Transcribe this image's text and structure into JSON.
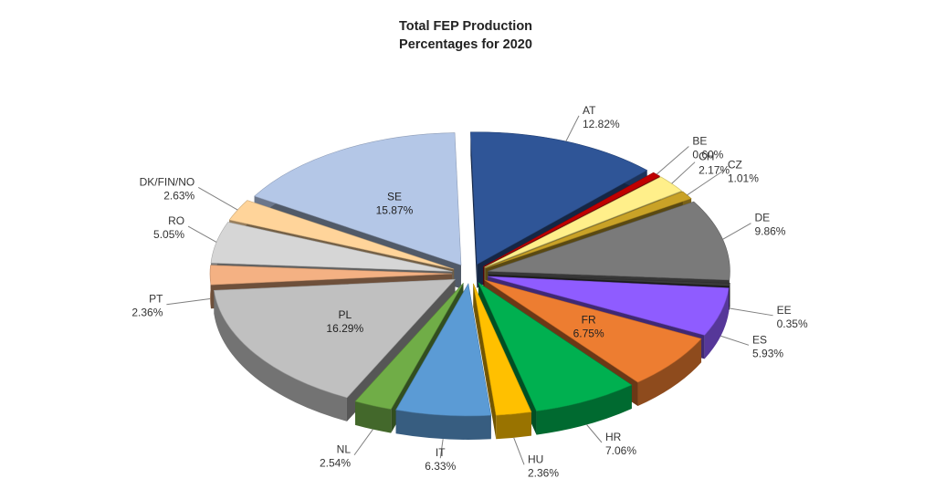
{
  "chart_data": {
    "type": "pie",
    "style": "3d-exploded",
    "title": "Total FEP Production",
    "subtitle": "Percentages for 2020",
    "slices": [
      {
        "label": "AT",
        "value": 12.82,
        "value_label": "12.82%",
        "color": "#2f5597"
      },
      {
        "label": "BE",
        "value": 0.6,
        "value_label": "0.60%",
        "color": "#c00000"
      },
      {
        "label": "CH",
        "value": 2.17,
        "value_label": "2.17%",
        "color": "#ffef8a"
      },
      {
        "label": "CZ",
        "value": 1.01,
        "value_label": "1.01%",
        "color": "#c9a227"
      },
      {
        "label": "DE",
        "value": 9.86,
        "value_label": "9.86%",
        "color": "#7a7a7a"
      },
      {
        "label": "EE",
        "value": 0.35,
        "value_label": "0.35%",
        "color": "#3a3a3a"
      },
      {
        "label": "ES",
        "value": 5.93,
        "value_label": "5.93%",
        "color": "#8f5cff"
      },
      {
        "label": "FR",
        "value": 6.75,
        "value_label": "6.75%",
        "color": "#ed7d31"
      },
      {
        "label": "HR",
        "value": 7.06,
        "value_label": "7.06%",
        "color": "#00b050"
      },
      {
        "label": "HU",
        "value": 2.36,
        "value_label": "2.36%",
        "color": "#ffc000"
      },
      {
        "label": "IT",
        "value": 6.33,
        "value_label": "6.33%",
        "color": "#5b9bd5"
      },
      {
        "label": "NL",
        "value": 2.54,
        "value_label": "2.54%",
        "color": "#70ad47"
      },
      {
        "label": "PL",
        "value": 16.29,
        "value_label": "16.29%",
        "color": "#c0c0c0"
      },
      {
        "label": "PT",
        "value": 2.36,
        "value_label": "2.36%",
        "color": "#f4b183"
      },
      {
        "label": "RO",
        "value": 5.05,
        "value_label": "5.05%",
        "color": "#d6d6d6"
      },
      {
        "label": "DK/FIN/NO",
        "value": 2.63,
        "value_label": "2.63%",
        "color": "#ffd49a"
      },
      {
        "label": "SE",
        "value": 15.87,
        "value_label": "15.87%",
        "color": "#b4c7e7"
      }
    ]
  }
}
